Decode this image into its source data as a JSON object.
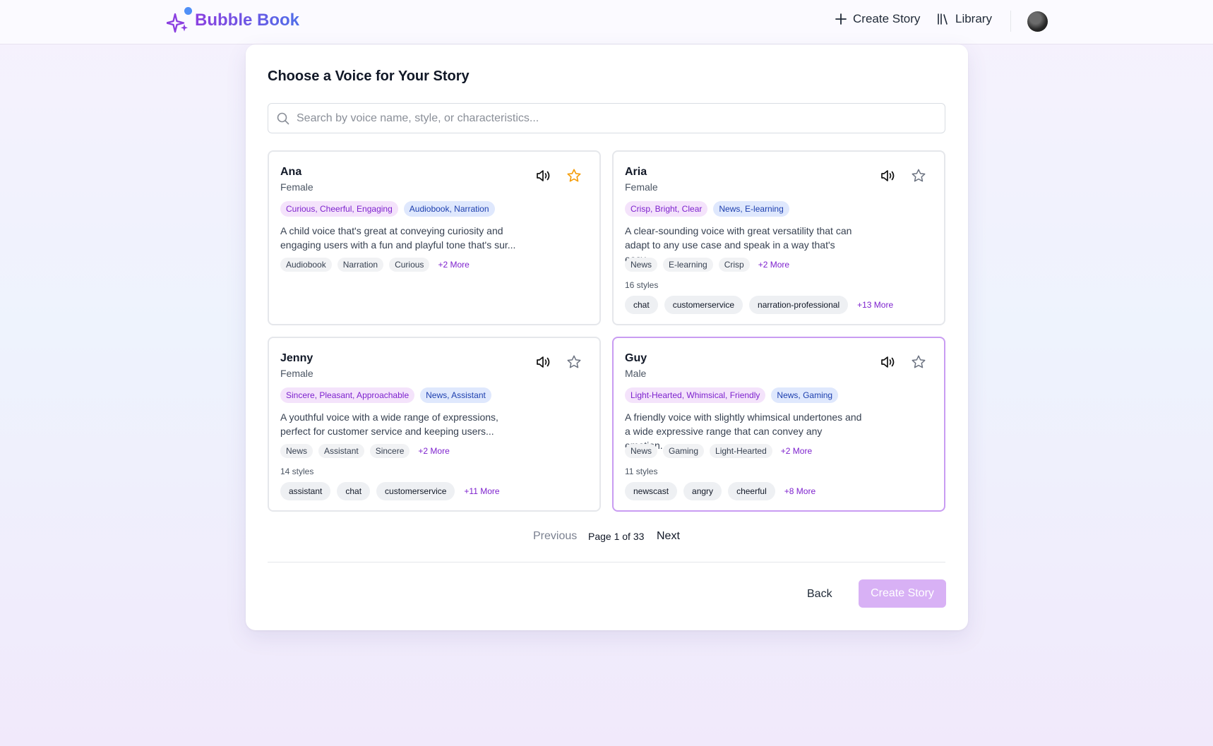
{
  "app": {
    "brand": "Bubble Book",
    "nav": {
      "create_story": "Create Story",
      "library": "Library"
    }
  },
  "page": {
    "title": "Choose a Voice for Your Story",
    "search_placeholder": "Search by voice name, style, or characteristics..."
  },
  "voices": [
    {
      "name": "Ana",
      "gender": "Female",
      "favorited": true,
      "traits": "Curious, Cheerful, Engaging",
      "categories": "Audiobook, Narration",
      "description": "A child voice that's great at conveying curiosity and engaging users with a fun and playful tone that's sur...",
      "tags": [
        "Audiobook",
        "Narration",
        "Curious"
      ],
      "tags_more": "+2 More",
      "styles_count": "",
      "styles": [],
      "styles_more": ""
    },
    {
      "name": "Aria",
      "gender": "Female",
      "favorited": false,
      "traits": "Crisp, Bright, Clear",
      "categories": "News, E-learning",
      "description": "A clear-sounding voice with great versatility that can adapt to any use case and speak in a way that's easy...",
      "tags": [
        "News",
        "E-learning",
        "Crisp"
      ],
      "tags_more": "+2 More",
      "styles_count": "16 styles",
      "styles": [
        "chat",
        "customerservice",
        "narration-professional"
      ],
      "styles_more": "+13 More"
    },
    {
      "name": "Jenny",
      "gender": "Female",
      "favorited": false,
      "traits": "Sincere, Pleasant, Approachable",
      "categories": "News, Assistant",
      "description": "A youthful voice with a wide range of expressions, perfect for customer service and keeping users...",
      "tags": [
        "News",
        "Assistant",
        "Sincere"
      ],
      "tags_more": "+2 More",
      "styles_count": "14 styles",
      "styles": [
        "assistant",
        "chat",
        "customerservice"
      ],
      "styles_more": "+11 More"
    },
    {
      "name": "Guy",
      "gender": "Male",
      "favorited": false,
      "selected": true,
      "traits": "Light-Hearted, Whimsical, Friendly",
      "categories": "News, Gaming",
      "description": "A friendly voice with slightly whimsical undertones and a wide expressive range that can convey any emotion...",
      "tags": [
        "News",
        "Gaming",
        "Light-Hearted"
      ],
      "tags_more": "+2 More",
      "styles_count": "11 styles",
      "styles": [
        "newscast",
        "angry",
        "cheerful"
      ],
      "styles_more": "+8 More"
    }
  ],
  "pagination": {
    "previous": "Previous",
    "label": "Page 1 of 33",
    "next": "Next"
  },
  "actions": {
    "back": "Back",
    "create": "Create Story"
  },
  "colors": {
    "accent": "#7e22ce",
    "selected_border": "#c99cf2",
    "favorite": "#f59e0b",
    "create_disabled": "#d8b1f5"
  }
}
